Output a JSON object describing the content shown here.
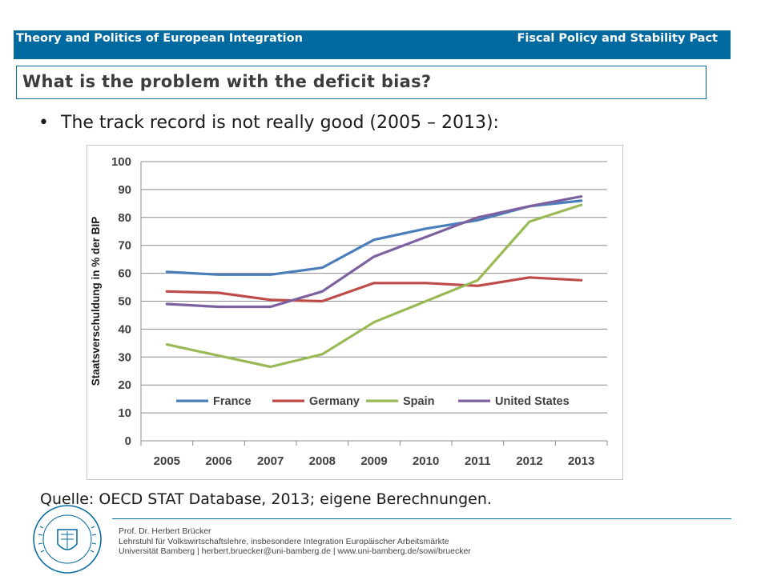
{
  "header": {
    "left": "Theory and Politics of European Integration",
    "right": "Fiscal Policy and Stability Pact"
  },
  "title": "What is the problem with the deficit bias?",
  "bullet": "The track record is not really good (2005 – 2013):",
  "source": "Quelle: OECD STAT Database, 2013; eigene Berechnungen.",
  "footer": {
    "name": "Prof. Dr. Herbert Brücker",
    "chair": "Lehrstuhl für Volkswirtschaftslehre, insbesondere Integration Europäischer Arbeitsmärkte",
    "contact": "Universität Bamberg | herbert.bruecker@uni-bamberg.de | www.uni-bamberg.de/sowi/bruecker"
  },
  "chart_data": {
    "type": "line",
    "title": "",
    "xlabel": "",
    "ylabel": "Staatsverschuldung in % der BIP",
    "x": [
      "2005",
      "2006",
      "2007",
      "2008",
      "2009",
      "2010",
      "2011",
      "2012",
      "2013"
    ],
    "ylim": [
      0,
      100
    ],
    "yticks": [
      0,
      10,
      20,
      30,
      40,
      50,
      60,
      70,
      80,
      90,
      100
    ],
    "grid": true,
    "legend_position": "inside-bottom",
    "series": [
      {
        "name": "France",
        "color": "#4a7ebb",
        "values": [
          60.5,
          59.5,
          59.5,
          62,
          72,
          76,
          79,
          84,
          86
        ]
      },
      {
        "name": "Germany",
        "color": "#be4b48",
        "values": [
          53.5,
          53,
          50.5,
          50,
          56.5,
          56.5,
          55.5,
          58.5,
          57.5
        ]
      },
      {
        "name": "Spain",
        "color": "#98b954",
        "values": [
          34.5,
          30.5,
          26.5,
          31,
          42.5,
          50,
          57.5,
          78.5,
          84.5
        ]
      },
      {
        "name": "United States",
        "color": "#7d60a0",
        "values": [
          49,
          48,
          48,
          53.5,
          66,
          73,
          80,
          84,
          87.5
        ]
      }
    ]
  }
}
